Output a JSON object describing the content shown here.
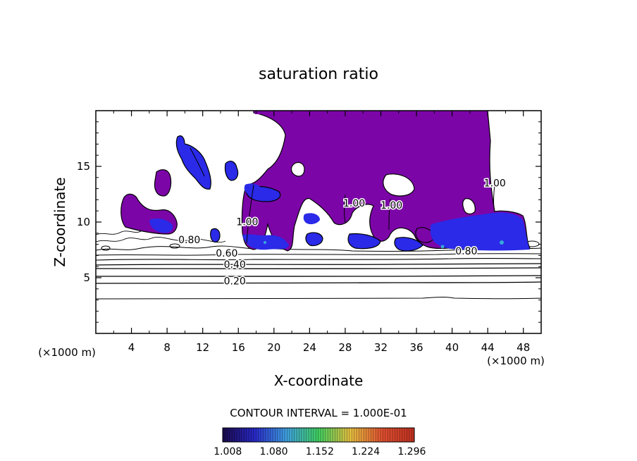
{
  "chart_data": {
    "type": "contour",
    "title": "saturation ratio",
    "xlabel": "X-coordinate",
    "ylabel": "Z-coordinate",
    "x_unit": "(×1000 m)",
    "y_unit": "(×1000 m)",
    "xlim": [
      0,
      50
    ],
    "ylim": [
      0,
      20
    ],
    "x_ticks": [
      4,
      8,
      12,
      16,
      20,
      24,
      28,
      32,
      36,
      40,
      44,
      48
    ],
    "y_ticks": [
      5,
      10,
      15
    ],
    "contour_interval_label": "CONTOUR INTERVAL = 1.000E-01",
    "colorbar": {
      "min": 1.0,
      "max": 1.3,
      "tick_labels": [
        "1.008",
        "1.080",
        "1.152",
        "1.224",
        "1.296"
      ],
      "colors": [
        "#1a0a4a",
        "#2828c8",
        "#3fa0e0",
        "#40d060",
        "#e8c040",
        "#e05030",
        "#c03020"
      ]
    },
    "contour_labels": [
      {
        "text": "0.20",
        "x": 15.6,
        "y": 4.4
      },
      {
        "text": "0.40",
        "x": 15.6,
        "y": 5.9
      },
      {
        "text": "0.60",
        "x": 14.7,
        "y": 6.9
      },
      {
        "text": "0.80",
        "x": 10.5,
        "y": 8.1
      },
      {
        "text": "0.80",
        "x": 41.6,
        "y": 7.1
      },
      {
        "text": "1.00",
        "x": 17.0,
        "y": 9.7
      },
      {
        "text": "1.00",
        "x": 29.0,
        "y": 11.4
      },
      {
        "text": "1.00",
        "x": 33.2,
        "y": 11.2
      },
      {
        "text": "1.00",
        "x": 44.8,
        "y": 13.2
      }
    ],
    "fill_colors": {
      "saturated": "#7c05a8",
      "high": "#2a2ae8",
      "peak": "#38a8d8"
    }
  }
}
